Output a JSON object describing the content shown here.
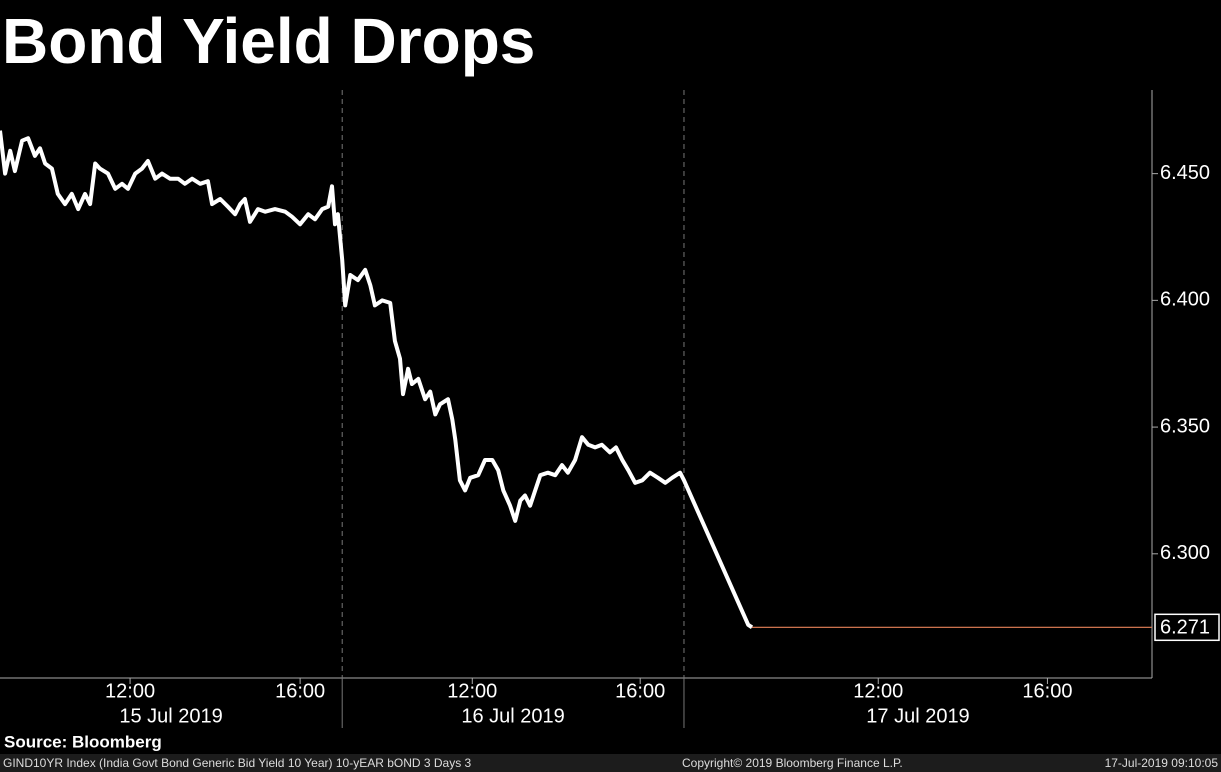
{
  "chart_data": {
    "type": "line",
    "title": "Bond Yield Drops",
    "source": "Source: Bloomberg",
    "footer_left": "GIND10YR Index (India Govt Bond Generic Bid Yield 10 Year) 10-yEAR bOND 3 Days 3",
    "footer_center": "Copyright© 2019 Bloomberg Finance L.P.",
    "footer_right": "17-Jul-2019 09:10:05",
    "color": "#ffffff",
    "x": [
      0,
      0.12,
      0.24,
      0.35,
      0.52,
      0.66,
      0.82,
      0.94,
      1.06,
      1.22,
      1.36,
      1.53,
      1.69,
      1.84,
      2.0,
      2.12,
      2.24,
      2.35,
      2.54,
      2.71,
      2.87,
      3.01,
      3.18,
      3.34,
      3.48,
      3.65,
      3.81,
      4.0,
      4.19,
      4.35,
      4.52,
      4.71,
      4.89,
      4.99,
      5.18,
      5.36,
      5.53,
      5.65,
      5.76,
      5.88,
      6.07,
      6.24,
      6.47,
      6.71,
      6.87,
      7.06,
      7.25,
      7.41,
      7.58,
      7.72,
      7.81,
      7.88,
      7.95,
      8.05,
      8.12,
      8.24,
      8.42,
      8.59,
      8.71,
      8.82,
      8.99,
      9.18,
      9.29,
      9.41,
      9.48,
      9.6,
      9.69,
      9.84,
      10.0,
      10.12,
      10.24,
      10.35,
      10.54,
      10.64,
      10.71,
      10.82,
      10.94,
      11.06,
      11.25,
      11.41,
      11.58,
      11.72,
      11.84,
      12.0,
      12.12,
      12.24,
      12.35,
      12.47,
      12.59,
      12.71,
      12.89,
      13.06,
      13.22,
      13.36,
      13.53,
      13.69,
      13.84,
      14.0,
      14.16,
      14.35,
      14.49,
      14.64,
      14.78,
      14.94,
      15.11,
      15.29,
      15.48,
      15.65,
      15.81,
      16.0,
      16.09,
      17.6,
      17.69
    ],
    "values": [
      6.467,
      6.45,
      6.459,
      6.451,
      6.463,
      6.464,
      6.457,
      6.46,
      6.454,
      6.452,
      6.442,
      6.438,
      6.442,
      6.436,
      6.442,
      6.438,
      6.454,
      6.452,
      6.45,
      6.444,
      6.446,
      6.444,
      6.45,
      6.452,
      6.455,
      6.448,
      6.45,
      6.448,
      6.448,
      6.446,
      6.448,
      6.446,
      6.447,
      6.438,
      6.44,
      6.437,
      6.434,
      6.438,
      6.44,
      6.431,
      6.436,
      6.435,
      6.436,
      6.435,
      6.433,
      6.43,
      6.434,
      6.432,
      6.436,
      6.437,
      6.445,
      6.43,
      6.434,
      6.416,
      6.398,
      6.41,
      6.408,
      6.412,
      6.406,
      6.398,
      6.4,
      6.399,
      6.384,
      6.377,
      6.363,
      6.373,
      6.367,
      6.369,
      6.361,
      6.364,
      6.355,
      6.359,
      6.361,
      6.353,
      6.345,
      6.329,
      6.325,
      6.33,
      6.331,
      6.337,
      6.337,
      6.333,
      6.325,
      6.319,
      6.313,
      6.321,
      6.323,
      6.319,
      6.325,
      6.331,
      6.332,
      6.331,
      6.335,
      6.332,
      6.337,
      6.346,
      6.343,
      6.342,
      6.343,
      6.34,
      6.342,
      6.337,
      6.333,
      6.328,
      6.329,
      6.332,
      6.33,
      6.328,
      6.33,
      6.332,
      6.329,
      6.272,
      6.271
    ],
    "last_value": 6.271,
    "last_value_color": "#e8835a",
    "xlim": [
      0,
      27.1
    ],
    "ylim": [
      6.251,
      6.483
    ],
    "yticks": [
      {
        "value": 6.45,
        "label": "6.450"
      },
      {
        "value": 6.4,
        "label": "6.400"
      },
      {
        "value": 6.35,
        "label": "6.350"
      },
      {
        "value": 6.3,
        "label": "6.300"
      }
    ],
    "xticks": [
      {
        "value": 3.06,
        "label": "12:00"
      },
      {
        "value": 7.06,
        "label": "16:00"
      },
      {
        "value": 11.11,
        "label": "12:00"
      },
      {
        "value": 15.06,
        "label": "16:00"
      },
      {
        "value": 20.66,
        "label": "12:00"
      },
      {
        "value": 24.64,
        "label": "16:00"
      }
    ],
    "days": [
      {
        "label": "15 Jul 2019",
        "start": 0,
        "end": 8.05
      },
      {
        "label": "16 Jul 2019",
        "start": 8.05,
        "end": 16.09
      },
      {
        "label": "17 Jul 2019",
        "start": 16.09,
        "end": 27.1
      }
    ]
  }
}
